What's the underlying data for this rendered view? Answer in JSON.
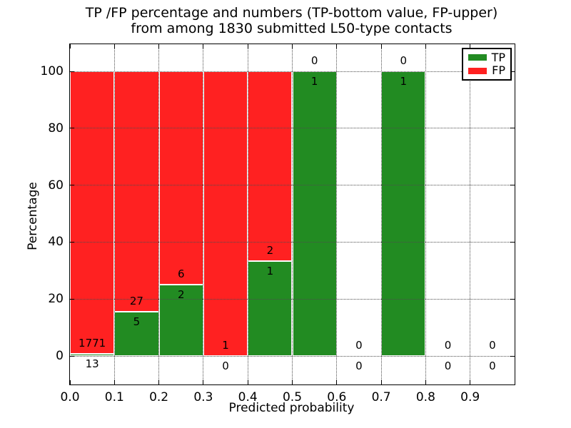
{
  "chart_data": {
    "type": "bar",
    "stacked": true,
    "units": "percent",
    "title_line1": "TP /FP percentage and numbers (TP-bottom value, FP-upper)",
    "title_line2": "from among 1830 submitted L50-type contacts",
    "total_submitted": 1830,
    "contact_type": "L50",
    "xlabel": "Predicted probability",
    "ylabel": "Percentage",
    "xlim": [
      0.0,
      1.0
    ],
    "ylim": [
      -10.5,
      109
    ],
    "grid": "dotted",
    "xticks": [
      "0.0",
      "0.1",
      "0.2",
      "0.3",
      "0.4",
      "0.5",
      "0.6",
      "0.7",
      "0.8",
      "0.9"
    ],
    "yticks": [
      0,
      20,
      40,
      60,
      80,
      100
    ],
    "legend_position": "upper right",
    "legend": [
      {
        "name": "TP",
        "color": "#228B22"
      },
      {
        "name": "FP",
        "color": "#FF2121"
      }
    ],
    "bins": [
      {
        "x_range": [
          0.0,
          0.1
        ],
        "tp": 13,
        "fp": 1771,
        "tp_pct": 0.73,
        "fp_pct": 99.27
      },
      {
        "x_range": [
          0.1,
          0.2
        ],
        "tp": 5,
        "fp": 27,
        "tp_pct": 15.63,
        "fp_pct": 84.37
      },
      {
        "x_range": [
          0.2,
          0.3
        ],
        "tp": 2,
        "fp": 6,
        "tp_pct": 25.0,
        "fp_pct": 75.0
      },
      {
        "x_range": [
          0.3,
          0.4
        ],
        "tp": 0,
        "fp": 1,
        "tp_pct": 0.0,
        "fp_pct": 100.0
      },
      {
        "x_range": [
          0.4,
          0.5
        ],
        "tp": 1,
        "fp": 2,
        "tp_pct": 33.33,
        "fp_pct": 66.67
      },
      {
        "x_range": [
          0.5,
          0.6
        ],
        "tp": 1,
        "fp": 0,
        "tp_pct": 100.0,
        "fp_pct": 0.0
      },
      {
        "x_range": [
          0.6,
          0.7
        ],
        "tp": 0,
        "fp": 0,
        "tp_pct": 0.0,
        "fp_pct": 0.0
      },
      {
        "x_range": [
          0.7,
          0.8
        ],
        "tp": 1,
        "fp": 0,
        "tp_pct": 100.0,
        "fp_pct": 0.0
      },
      {
        "x_range": [
          0.8,
          0.9
        ],
        "tp": 0,
        "fp": 0,
        "tp_pct": 0.0,
        "fp_pct": 0.0
      },
      {
        "x_range": [
          0.9,
          1.0
        ],
        "tp": 0,
        "fp": 0,
        "tp_pct": 0.0,
        "fp_pct": 0.0
      }
    ]
  }
}
